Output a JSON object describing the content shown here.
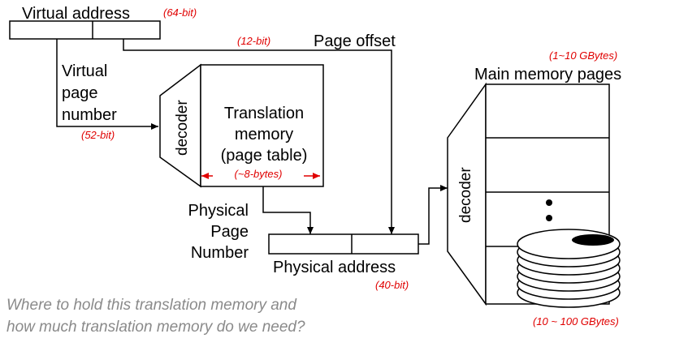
{
  "virtual_address": {
    "label": "Virtual address",
    "bits": "(64-bit)"
  },
  "page_offset": {
    "label": "Page offset",
    "bits": "(12-bit)"
  },
  "virtual_page_number": {
    "line1": "Virtual",
    "line2": "page",
    "line3": "number",
    "bits": "(52-bit)"
  },
  "translation_memory": {
    "decoder_label": "decoder",
    "line1": "Translation",
    "line2": "memory",
    "line3": "(page table)",
    "entry_size": "(~8-bytes)"
  },
  "physical_page_number": {
    "line1": "Physical",
    "line2": "Page",
    "line3": "Number"
  },
  "physical_address": {
    "label": "Physical address",
    "bits": "(40-bit)"
  },
  "main_memory": {
    "label": "Main memory pages",
    "size": "(1~10 GBytes)",
    "decoder_label": "decoder"
  },
  "disk": {
    "size": "(10 ~ 100 GBytes)"
  },
  "question": {
    "line1": "Where to hold this translation memory and",
    "line2": "how much translation memory do we need?"
  },
  "colors": {
    "annotation": "#e00000",
    "question": "#8a8a8a",
    "line": "#000000"
  }
}
